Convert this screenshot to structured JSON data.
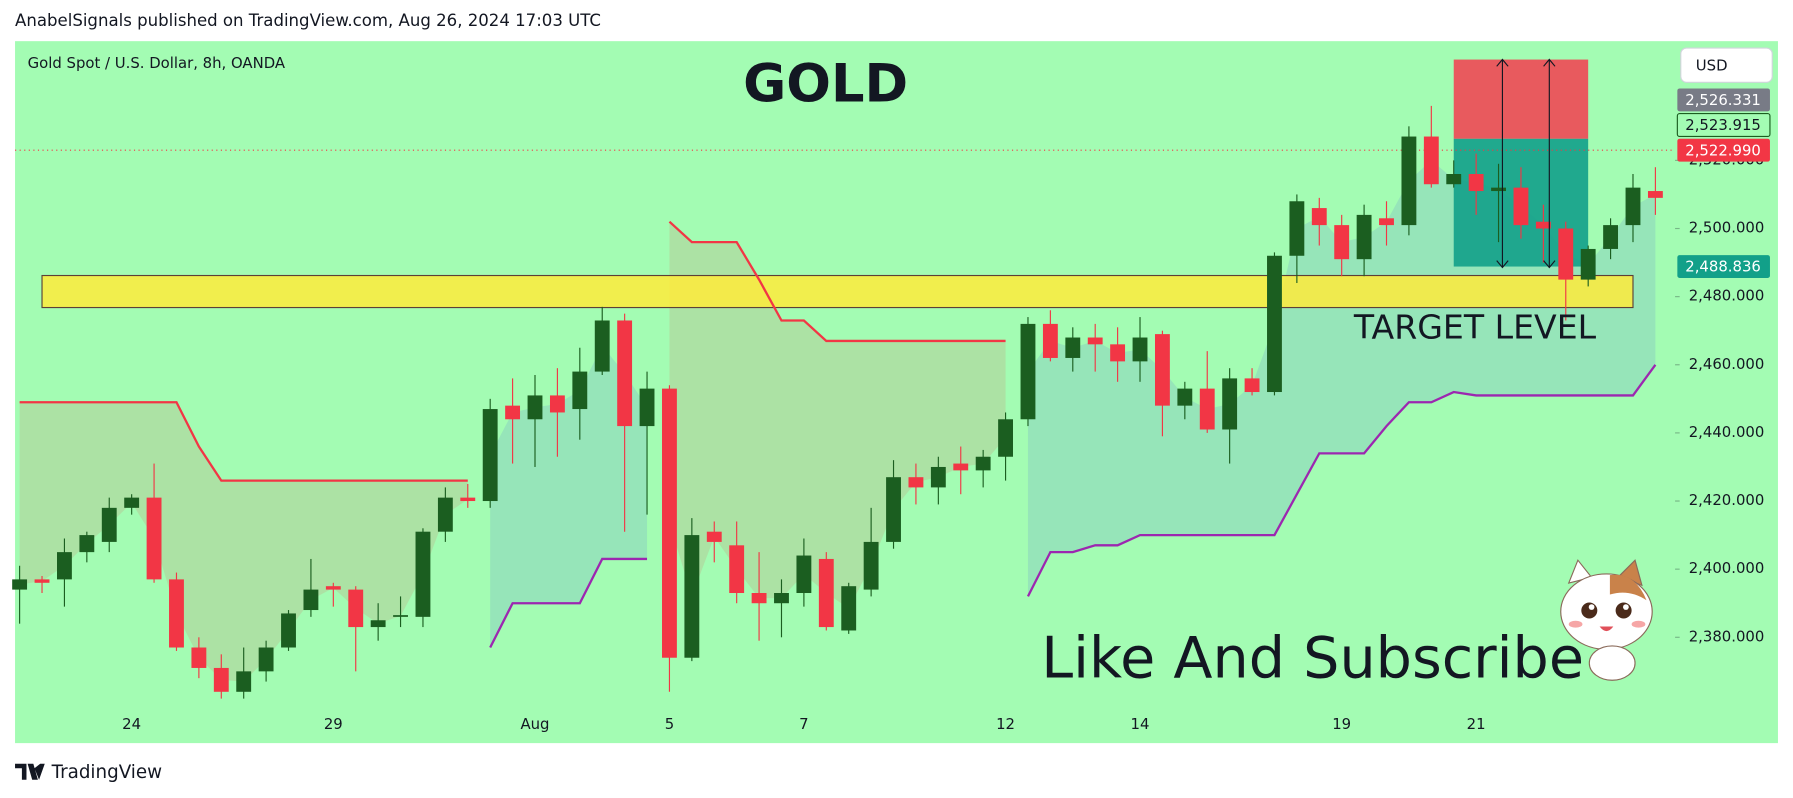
{
  "chart_data": {
    "type": "candlestick",
    "header": "AnabelSignals published on TradingView.com, Aug 26, 2024 17:03 UTC",
    "symbol": "Gold Spot / U.S. Dollar, 8h, OANDA",
    "title": "GOLD",
    "zone_label": "TARGET LEVEL",
    "caption": "Like And Subscribe",
    "currency": "USD",
    "footer": "TradingView",
    "categories": [
      null,
      null,
      null,
      null,
      null,
      "24",
      null,
      null,
      null,
      null,
      null,
      null,
      null,
      null,
      "29",
      null,
      null,
      null,
      null,
      null,
      null,
      null,
      null,
      "Aug",
      null,
      null,
      null,
      null,
      null,
      "5",
      null,
      null,
      null,
      null,
      null,
      "7",
      null,
      null,
      null,
      null,
      null,
      null,
      null,
      null,
      "12",
      null,
      null,
      null,
      null,
      null,
      "14",
      null,
      null,
      null,
      null,
      null,
      null,
      null,
      null,
      "19",
      null,
      null,
      null,
      null,
      null,
      "21",
      null,
      null,
      null,
      null,
      null,
      null,
      null,
      null
    ],
    "open": [
      2394,
      2397,
      2397,
      2405,
      2408,
      2418,
      2421,
      2397,
      2377,
      2371,
      2364,
      2370,
      2377,
      2388,
      2395,
      2394,
      2383,
      2386,
      2386,
      2411,
      2421,
      2420,
      2448,
      2444,
      2451,
      2447,
      2458,
      2473,
      2442,
      2453,
      2374,
      2411,
      2407,
      2393,
      2390,
      2393,
      2403,
      2382,
      2394,
      2408,
      2427,
      2424,
      2431,
      2429,
      2433,
      2444,
      2472,
      2462,
      2468,
      2466,
      2461,
      2469,
      2448,
      2453,
      2441,
      2456,
      2452,
      2492,
      2506,
      2501,
      2491,
      2503,
      2501,
      2527,
      2513,
      2516,
      2511,
      2512,
      2502,
      2500,
      2485,
      2494,
      2501,
      2511
    ],
    "high": [
      2401,
      2398,
      2409,
      2411,
      2421,
      2422,
      2431,
      2399,
      2380,
      2375,
      2377,
      2379,
      2388,
      2403,
      2396,
      2395,
      2390,
      2392,
      2412,
      2424,
      2425,
      2450,
      2456,
      2457,
      2459,
      2465,
      2477,
      2475,
      2458,
      2454,
      2415,
      2414,
      2414,
      2405,
      2397,
      2409,
      2405,
      2396,
      2418,
      2432,
      2431,
      2433,
      2436,
      2435,
      2446,
      2474,
      2476,
      2471,
      2472,
      2471,
      2474,
      2470,
      2455,
      2464,
      2459,
      2459,
      2493,
      2510,
      2509,
      2504,
      2507,
      2508,
      2530,
      2536,
      2520,
      2522,
      2519,
      2518,
      2507,
      2502,
      2495,
      2503,
      2516,
      2518
    ],
    "low": [
      2384,
      2393,
      2389,
      2402,
      2405,
      2416,
      2396,
      2376,
      2368,
      2362,
      2362,
      2367,
      2376,
      2386,
      2389,
      2370,
      2379,
      2383,
      2383,
      2408,
      2418,
      2418,
      2431,
      2430,
      2433,
      2438,
      2457,
      2411,
      2416,
      2364,
      2373,
      2402,
      2390,
      2379,
      2380,
      2389,
      2382,
      2381,
      2392,
      2406,
      2419,
      2419,
      2422,
      2424,
      2426,
      2442,
      2461,
      2458,
      2458,
      2455,
      2455,
      2439,
      2444,
      2440,
      2431,
      2451,
      2451,
      2484,
      2495,
      2486,
      2486,
      2495,
      2498,
      2512,
      2512,
      2504,
      2496,
      2497,
      2490,
      2473,
      2483,
      2491,
      2496,
      2504
    ],
    "close": [
      2397,
      2396,
      2405,
      2410,
      2418,
      2421,
      2397,
      2377,
      2371,
      2364,
      2370,
      2377,
      2387,
      2394,
      2394,
      2383,
      2385,
      2386.5,
      2411,
      2421,
      2420,
      2447,
      2444,
      2451,
      2446,
      2458,
      2473,
      2442,
      2453,
      2374,
      2410,
      2408,
      2393,
      2390,
      2393,
      2404,
      2383,
      2395,
      2408,
      2427,
      2424,
      2430,
      2429,
      2433,
      2444,
      2472,
      2462,
      2468,
      2466,
      2461,
      2468,
      2448,
      2453,
      2441,
      2456,
      2452,
      2492,
      2508,
      2501,
      2491,
      2504,
      2501,
      2527,
      2513,
      2516,
      2511,
      2512,
      2501,
      2500,
      2485,
      2494,
      2501,
      2512,
      2509
    ],
    "up_color": "#1b5e20",
    "down_color": "#f23645",
    "indicators": [
      {
        "color": "#f23645",
        "fill": "rgba(242,54,69,0.13)",
        "values": [
          2449,
          2449,
          2449,
          2449,
          2449,
          2449,
          2449,
          2449,
          2436,
          2426,
          2426,
          2426,
          2426,
          2426,
          2426,
          2426,
          2426,
          2426,
          2426,
          2426,
          2426,
          null,
          null,
          null,
          null,
          null,
          null,
          null,
          null,
          2502,
          2496,
          2496,
          2496,
          2485,
          2473,
          2473,
          2467,
          2467,
          2467,
          2467,
          2467,
          2467,
          2467,
          2467,
          2467,
          null,
          null,
          null,
          null,
          null,
          null,
          null,
          null,
          null,
          null,
          null,
          null,
          null,
          null,
          null,
          null,
          null,
          null,
          null,
          null,
          null,
          null,
          null,
          null,
          null,
          null,
          null,
          null,
          null
        ]
      },
      {
        "color": "#9c27b0",
        "fill": "rgba(90,110,220,0.16)",
        "values": [
          null,
          null,
          null,
          null,
          null,
          null,
          null,
          null,
          null,
          null,
          null,
          null,
          null,
          null,
          null,
          null,
          null,
          null,
          null,
          null,
          null,
          2377,
          2390,
          2390,
          2390,
          2390,
          2403,
          2403,
          2403,
          null,
          null,
          null,
          null,
          null,
          null,
          null,
          null,
          null,
          null,
          null,
          null,
          null,
          null,
          null,
          null,
          2392,
          2405,
          2405,
          2407,
          2407,
          2410,
          2410,
          2410,
          2410,
          2410,
          2410,
          2410,
          2422,
          2434,
          2434,
          2434,
          2442,
          2449,
          2449,
          2452,
          2451,
          2451,
          2451,
          2451,
          2451,
          2451,
          2451,
          2451,
          2460
        ]
      }
    ],
    "target_zone": {
      "low": 2476.8,
      "high": 2486.2,
      "from": 1,
      "to": 72,
      "color": "#ffeb3b"
    },
    "position": {
      "stop": 2549.6,
      "entry": 2526.331,
      "target": 2488.836,
      "from": 64,
      "to": 70,
      "loss_color": "#e85a5e",
      "profit_color": "#12a089"
    },
    "price_labels": [
      {
        "value": 2526.331,
        "label": "2,526.331",
        "color": "#787b86"
      },
      {
        "value": 2523.915,
        "label": "2,523.915",
        "color": "#a3fcb3"
      },
      {
        "value": 2522.99,
        "label": "2,522.990",
        "color": "#f23645"
      },
      {
        "value": 2488.836,
        "label": "2,488.836",
        "color": "#12a089"
      }
    ],
    "ylim": [
      2359,
      2555
    ],
    "yticks": [
      {
        "value": 2380,
        "label": "2,380.000"
      },
      {
        "value": 2400,
        "label": "2,400.000"
      },
      {
        "value": 2420,
        "label": "2,420.000"
      },
      {
        "value": 2440,
        "label": "2,440.000"
      },
      {
        "value": 2460,
        "label": "2,460.000"
      },
      {
        "value": 2480,
        "label": "2,480.000"
      },
      {
        "value": 2500,
        "label": "2,500.000"
      },
      {
        "value": 2520,
        "label": "2,520.000"
      }
    ],
    "background": "#a3fcb3"
  }
}
